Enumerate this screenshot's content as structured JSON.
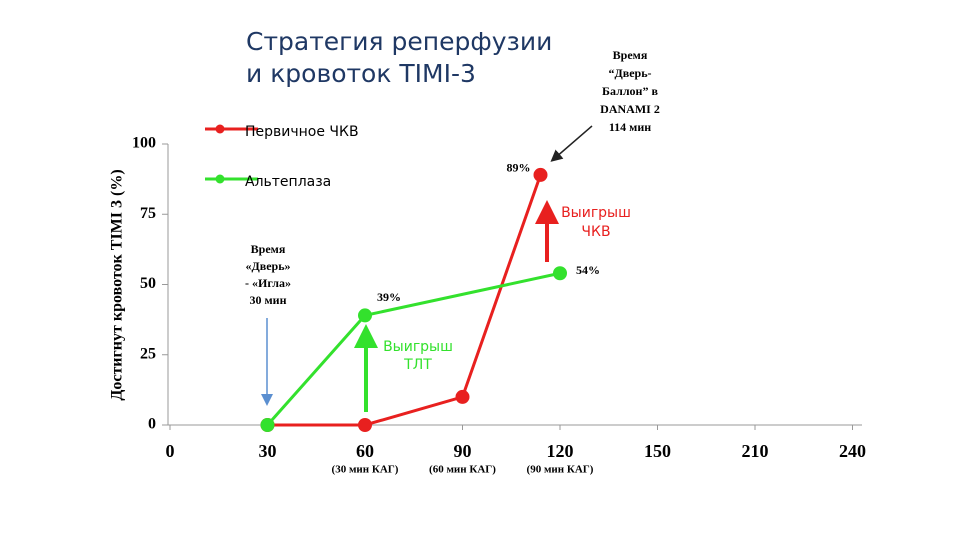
{
  "chart_data": {
    "type": "line",
    "title": [
      "Стратегия реперфузии",
      "и кровоток TIMI-3"
    ],
    "y_label": "Достигнут кровоток TIMI 3 (%)",
    "xticks": [
      0,
      30,
      60,
      90,
      120,
      150,
      210,
      240
    ],
    "x_sublabels": [
      null,
      null,
      "(30 мин КАГ)",
      "(60 мин КАГ)",
      "(90 мин КАГ)",
      null,
      null,
      null
    ],
    "ylim": [
      0,
      100
    ],
    "yticks": [
      0,
      25,
      50,
      75,
      100
    ],
    "series": [
      {
        "name": "Первичное ЧКВ",
        "color": "#e8201f",
        "x": [
          30,
          60,
          90,
          114
        ],
        "values": [
          0,
          0,
          10,
          89
        ],
        "value_labels": [
          null,
          null,
          null,
          "89%"
        ]
      },
      {
        "name": "Альтеплаза",
        "color": "#33e12d",
        "x": [
          30,
          60,
          120
        ],
        "values": [
          0,
          39,
          54
        ],
        "value_labels": [
          null,
          "39%",
          "54%"
        ]
      }
    ],
    "annotations": [
      {
        "lines": [
          "Время",
          "“Дверь-",
          "Баллон” в",
          "DANAMI 2",
          "114 мин"
        ],
        "color": "#000000"
      },
      {
        "lines": [
          "Время",
          "«Дверь»",
          "- «Игла»",
          "30 мин"
        ],
        "color": "#000000"
      },
      {
        "lines": [
          "Выигрыш",
          "ЧКВ"
        ],
        "color": "#e8201f"
      },
      {
        "lines": [
          "Выигрыш",
          "ТЛТ"
        ],
        "color": "#33e12d"
      }
    ]
  }
}
